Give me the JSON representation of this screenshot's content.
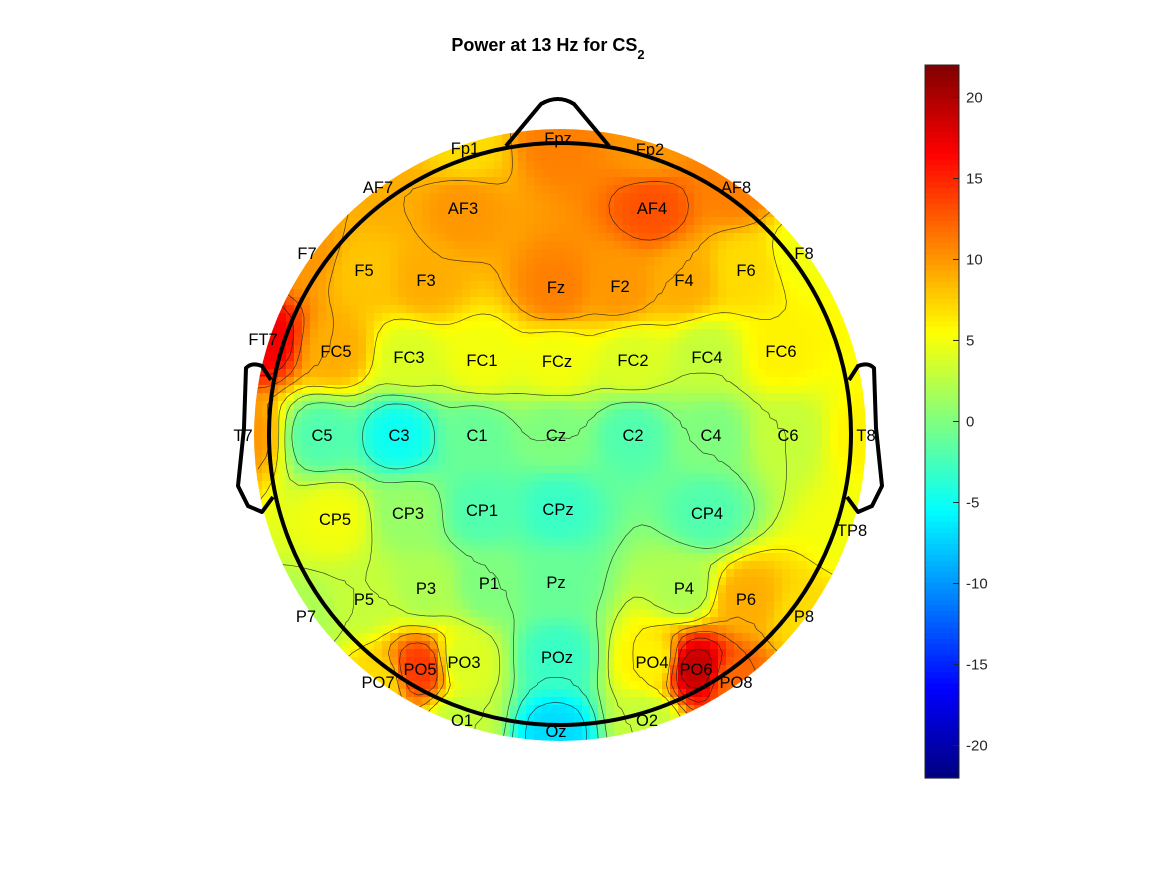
{
  "chart_data": {
    "type": "heatmap",
    "subtype": "eeg-topoplot",
    "title": {
      "main": "Power at 13 Hz for CS",
      "subscript": "2"
    },
    "colormap": "jet",
    "clim": [
      -22,
      22
    ],
    "colorbar": {
      "position": "right",
      "ticks": [
        20,
        15,
        10,
        5,
        0,
        -5,
        -10,
        -15,
        -20
      ],
      "tick_labels": [
        "20",
        "15",
        "10",
        "5",
        "0",
        "-5",
        "-10",
        "-15",
        "-20"
      ]
    },
    "contours": true,
    "electrodes": [
      {
        "label": "Fpz",
        "value": 11
      },
      {
        "label": "Fp1",
        "value": 7
      },
      {
        "label": "Fp2",
        "value": 10
      },
      {
        "label": "AF7",
        "value": 9
      },
      {
        "label": "AF3",
        "value": 10
      },
      {
        "label": "AF4",
        "value": 13
      },
      {
        "label": "AF8",
        "value": 11
      },
      {
        "label": "F7",
        "value": 10
      },
      {
        "label": "F5",
        "value": 8
      },
      {
        "label": "F3",
        "value": 9
      },
      {
        "label": "Fz",
        "value": 11
      },
      {
        "label": "F2",
        "value": 10
      },
      {
        "label": "F4",
        "value": 9
      },
      {
        "label": "F6",
        "value": 7
      },
      {
        "label": "F8",
        "value": 5
      },
      {
        "label": "FT7",
        "value": 17
      },
      {
        "label": "FC5",
        "value": 9
      },
      {
        "label": "FC3",
        "value": 4
      },
      {
        "label": "FC1",
        "value": 5
      },
      {
        "label": "FCz",
        "value": 5
      },
      {
        "label": "FC2",
        "value": 4
      },
      {
        "label": "FC4",
        "value": 3
      },
      {
        "label": "FC6",
        "value": 6
      },
      {
        "label": "T7",
        "value": 10
      },
      {
        "label": "C5",
        "value": -2
      },
      {
        "label": "C3",
        "value": -5
      },
      {
        "label": "C1",
        "value": -1
      },
      {
        "label": "Cz",
        "value": 0
      },
      {
        "label": "C2",
        "value": -2
      },
      {
        "label": "C4",
        "value": 0
      },
      {
        "label": "C6",
        "value": 3
      },
      {
        "label": "T8",
        "value": 6
      },
      {
        "label": "CP5",
        "value": 5
      },
      {
        "label": "CP3",
        "value": 1
      },
      {
        "label": "CP1",
        "value": -2
      },
      {
        "label": "CPz",
        "value": -3
      },
      {
        "label": "CP4",
        "value": -2
      },
      {
        "label": "TP8",
        "value": 5
      },
      {
        "label": "P7",
        "value": 2
      },
      {
        "label": "P5",
        "value": 3
      },
      {
        "label": "P3",
        "value": 2
      },
      {
        "label": "P1",
        "value": 0
      },
      {
        "label": "Pz",
        "value": -1
      },
      {
        "label": "P4",
        "value": 2
      },
      {
        "label": "P6",
        "value": 9
      },
      {
        "label": "P8",
        "value": 7
      },
      {
        "label": "PO7",
        "value": 7
      },
      {
        "label": "PO5",
        "value": 14
      },
      {
        "label": "PO3",
        "value": 4
      },
      {
        "label": "POz",
        "value": -3
      },
      {
        "label": "PO4",
        "value": 6
      },
      {
        "label": "PO6",
        "value": 19
      },
      {
        "label": "PO8",
        "value": 12
      },
      {
        "label": "O1",
        "value": 3
      },
      {
        "label": "Oz",
        "value": -7
      },
      {
        "label": "O2",
        "value": 3
      }
    ]
  }
}
